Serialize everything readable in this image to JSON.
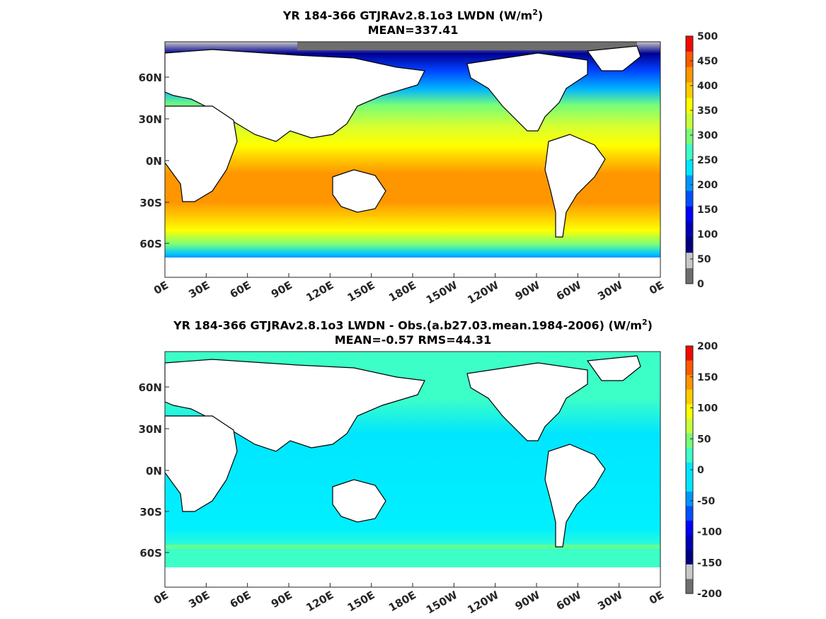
{
  "chart_data": [
    {
      "type": "heatmap",
      "title_main": "YR 184-366 GTJRAv2.8.1o3 LWDN (W/m",
      "title_sup": "2",
      "title_close": ")",
      "subtitle": "MEAN=337.41",
      "x_ticks": [
        "0E",
        "30E",
        "60E",
        "90E",
        "120E",
        "150E",
        "180E",
        "150W",
        "120W",
        "90W",
        "60W",
        "30W",
        "0E"
      ],
      "y_ticks": [
        "60N",
        "30N",
        "0N",
        "30S",
        "60S"
      ],
      "colorbar_ticks": [
        "500",
        "450",
        "400",
        "350",
        "300",
        "250",
        "200",
        "150",
        "100",
        "50",
        "0"
      ],
      "colorbar_range": [
        0,
        500
      ],
      "colorbar_colors": [
        "#f00a00",
        "#ff5a00",
        "#ff9600",
        "#ffcc00",
        "#ffff00",
        "#c8ff3c",
        "#78ff78",
        "#3cffc8",
        "#00e6ff",
        "#0096ff",
        "#0050ff",
        "#0000ff",
        "#0000b4",
        "#000080",
        "#c8c8c8",
        "#6e6e6e"
      ],
      "mean": 337.41
    },
    {
      "type": "heatmap",
      "title_main": "YR 184-366 GTJRAv2.8.1o3 LWDN - Obs.(a.b27.03.mean.1984-2006) (W/m",
      "title_sup": "2",
      "title_close": ")",
      "subtitle": "MEAN=-0.57 RMS=44.31",
      "x_ticks": [
        "0E",
        "30E",
        "60E",
        "90E",
        "120E",
        "150E",
        "180E",
        "150W",
        "120W",
        "90W",
        "60W",
        "30W",
        "0E"
      ],
      "y_ticks": [
        "60N",
        "30N",
        "0N",
        "30S",
        "60S"
      ],
      "colorbar_ticks": [
        "200",
        "150",
        "100",
        "50",
        "0",
        "-50",
        "-100",
        "-150",
        "-200"
      ],
      "colorbar_range": [
        -200,
        200
      ],
      "colorbar_colors": [
        "#f00a00",
        "#ff5a00",
        "#ff9600",
        "#ffcc00",
        "#ffff00",
        "#c8ff3c",
        "#78ff78",
        "#3cffc8",
        "#00e6ff",
        "#00e6ff",
        "#0096ff",
        "#0050ff",
        "#0000ff",
        "#0000b4",
        "#000080",
        "#c8c8c8",
        "#6e6e6e"
      ],
      "mean": -0.57,
      "rms": 44.31
    }
  ]
}
